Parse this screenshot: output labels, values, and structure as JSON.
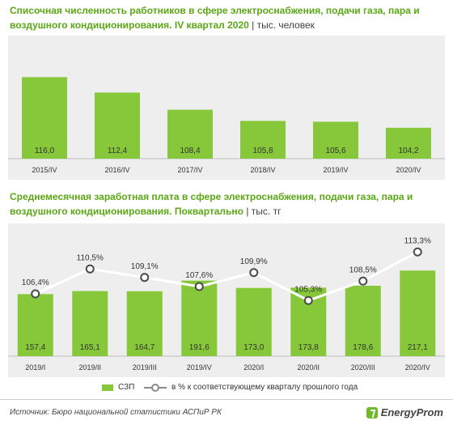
{
  "chart_data": [
    {
      "type": "bar",
      "title": "Списочная численность работников в сфере электроснабжения, подачи газа, пара и воздушного  кондиционирования. IV квартал 2020",
      "unit": "| тыс. человек",
      "categories": [
        "2015/IV",
        "2016/IV",
        "2017/IV",
        "2018/IV",
        "2019/IV",
        "2020/IV"
      ],
      "values": [
        116.0,
        112.4,
        108.4,
        105.8,
        105.6,
        104.2
      ],
      "value_labels": [
        "116,0",
        "112,4",
        "108,4",
        "105,8",
        "105,6",
        "104,2"
      ],
      "ylim": [
        97,
        117
      ],
      "color": "#86c83a"
    },
    {
      "type": "bar",
      "title": "Среднемесячная заработная плата  в сфере электроснабжения, подачи газа, пара и воздушного кондиционирования. Поквартально",
      "unit": "| тыс. тг",
      "categories": [
        "2019/I",
        "2019/II",
        "2019/III",
        "2019/IV",
        "2020/I",
        "2020/II",
        "2020/III",
        "2020/IV"
      ],
      "series": [
        {
          "name": "СЗП",
          "type": "bar",
          "values": [
            157.4,
            165.1,
            164.7,
            191.6,
            173.0,
            173.8,
            178.6,
            217.1
          ],
          "value_labels": [
            "157,4",
            "165,1",
            "164,7",
            "191,6",
            "173,0",
            "173,8",
            "178,6",
            "217,1"
          ],
          "color": "#86c83a"
        },
        {
          "name": "в % к соответствующему кварталу прошлого года",
          "type": "line",
          "values": [
            106.4,
            110.5,
            109.1,
            107.6,
            109.9,
            105.3,
            108.5,
            113.3
          ],
          "value_labels": [
            "106,4%",
            "110,5%",
            "109,1%",
            "107,6%",
            "109,9%",
            "105,3%",
            "108,5%",
            "113,3%"
          ],
          "color": "#ffffff"
        }
      ],
      "ylim_bars": [
        0,
        230
      ],
      "ylim_line": [
        100,
        114
      ]
    }
  ],
  "footer": {
    "source": "Источник: Бюро национальной  статистики АСПиР РК",
    "brand": "EnergyProm"
  }
}
